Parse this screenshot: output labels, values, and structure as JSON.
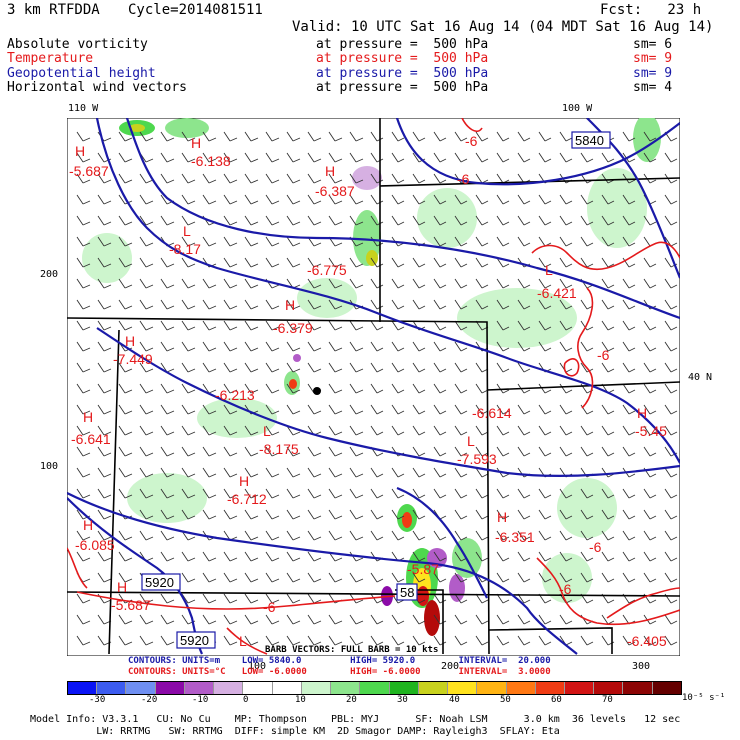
{
  "header": {
    "model": "3 km RTFDDA",
    "cycle": "Cycle=2014081511",
    "forecast": "Fcst:   23 h",
    "valid": "Valid: 10 UTC Sat 16 Aug 14 (04 MDT Sat 16 Aug 14)"
  },
  "fields": [
    {
      "name": "Absolute vorticity",
      "desc": "at pressure =  500 hPa",
      "sm": "sm= 6",
      "color": "#000000"
    },
    {
      "name": "Temperature",
      "desc": "at pressure =  500 hPa",
      "sm": "sm= 9",
      "color": "#e41a1c"
    },
    {
      "name": "Geopotential height",
      "desc": "at pressure =  500 hPa",
      "sm": "sm= 9",
      "color": "#1a1aa8"
    },
    {
      "name": "Horizontal wind vectors",
      "desc": "at pressure =  500 hPa",
      "sm": "sm= 4",
      "color": "#000000"
    }
  ],
  "axes": {
    "top_left": "110 W",
    "top_right": "100 W",
    "right_lat": "40 N",
    "left_200": "200",
    "left_100": "100",
    "bottom_100": "100",
    "bottom_200": "200",
    "bottom_300": "300"
  },
  "map_labels": {
    "temperature": [
      {
        "t": "H"
      },
      {
        "t": "-5.687"
      },
      {
        "t": "H"
      },
      {
        "t": "-6.138"
      },
      {
        "t": "H"
      },
      {
        "t": "-6.387"
      },
      {
        "t": "-6"
      },
      {
        "t": "-6"
      },
      {
        "t": "L"
      },
      {
        "t": "-8.17"
      },
      {
        "t": "-6.775"
      },
      {
        "t": "L"
      },
      {
        "t": "-6.421"
      },
      {
        "t": "H"
      },
      {
        "t": "-6.379"
      },
      {
        "t": "H"
      },
      {
        "t": "-7.449"
      },
      {
        "t": "-6"
      },
      {
        "t": "-6.213"
      },
      {
        "t": "-6.614"
      },
      {
        "t": "H"
      },
      {
        "t": "-5.45"
      },
      {
        "t": "H"
      },
      {
        "t": "-6.641"
      },
      {
        "t": "L"
      },
      {
        "t": "-8.175"
      },
      {
        "t": "L"
      },
      {
        "t": "-7.593"
      },
      {
        "t": "H"
      },
      {
        "t": "-6.712"
      },
      {
        "t": "H"
      },
      {
        "t": "-6.351"
      },
      {
        "t": "H"
      },
      {
        "t": "-6.085"
      },
      {
        "t": "-6"
      },
      {
        "t": "H"
      },
      {
        "t": "-5.687"
      },
      {
        "t": "-6"
      },
      {
        "t": "-6"
      },
      {
        "t": "L"
      },
      {
        "t": "-6.405"
      },
      {
        "t": "-5.87"
      }
    ],
    "height_boxes": [
      "5840",
      "5920",
      "5920",
      "58"
    ]
  },
  "legend": {
    "barbs": "BARB VECTORS: FULL BARB = 10 kts",
    "contours_blue": "CONTOURS: UNITS=m    LOW= 5840.0         HIGH= 5920.0        INTERVAL=  20.000",
    "contours_red": "CONTOURS: UNITS=°C   LOW= -6.0000        HIGH= -6.0000       INTERVAL=  3.0000",
    "color_ticks": [
      "-30",
      "-20",
      "-10",
      "0",
      "10",
      "20",
      "30",
      "40",
      "50",
      "60",
      "70"
    ],
    "color_unit": "10⁻⁵ s⁻¹",
    "colors": [
      "#0a14f5",
      "#3c5cf0",
      "#6f8ff2",
      "#8b0aa8",
      "#b25cc8",
      "#d6b0e2",
      "#ffffff",
      "#ffffff",
      "#cdf5cd",
      "#8de58d",
      "#4ed84e",
      "#1fb41f",
      "#c8d21e",
      "#ffe21e",
      "#ffb414",
      "#ff7814",
      "#f03c14",
      "#d21414",
      "#b40a0a",
      "#8c0505",
      "#640000"
    ]
  },
  "footer": {
    "line1": "Model Info: V3.3.1   CU: No Cu    MP: Thompson    PBL: MYJ      SF: Noah LSM      3.0 km  36 levels   12 sec",
    "line2": "           LW: RRTMG   SW: RRTMG  DIFF: simple KM  2D Smagor DAMP: Rayleigh3  SFLAY: Eta"
  }
}
